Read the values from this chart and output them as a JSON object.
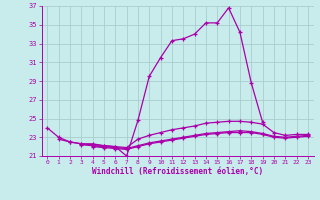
{
  "title": "",
  "xlabel": "Windchill (Refroidissement éolien,°C)",
  "ylabel": "",
  "background_color": "#c8ecec",
  "line_color": "#aa00aa",
  "grid_color": "#aacccc",
  "xlim": [
    -0.5,
    23.5
  ],
  "ylim": [
    21,
    37
  ],
  "yticks": [
    21,
    23,
    25,
    27,
    29,
    31,
    33,
    35,
    37
  ],
  "xticks": [
    0,
    1,
    2,
    3,
    4,
    5,
    6,
    7,
    8,
    9,
    10,
    11,
    12,
    13,
    14,
    15,
    16,
    17,
    18,
    19,
    20,
    21,
    22,
    23
  ],
  "series": [
    [
      24.0,
      23.0,
      22.5,
      22.3,
      22.3,
      22.1,
      22.0,
      21.0,
      24.8,
      29.5,
      31.5,
      33.3,
      33.5,
      34.0,
      35.2,
      35.2,
      36.8,
      34.2,
      28.8,
      24.6,
      null,
      null,
      null,
      null
    ],
    [
      null,
      22.8,
      22.5,
      22.3,
      22.2,
      22.1,
      22.0,
      21.9,
      22.8,
      23.2,
      23.5,
      23.8,
      24.0,
      24.2,
      24.5,
      24.6,
      24.7,
      24.7,
      24.6,
      24.4,
      23.5,
      23.2,
      23.3,
      23.3
    ],
    [
      null,
      null,
      null,
      22.2,
      22.1,
      22.0,
      21.9,
      21.8,
      22.1,
      22.4,
      22.6,
      22.8,
      23.0,
      23.2,
      23.4,
      23.5,
      23.6,
      23.7,
      23.6,
      23.4,
      23.1,
      23.0,
      23.1,
      23.2
    ],
    [
      null,
      null,
      null,
      null,
      22.0,
      21.9,
      21.8,
      21.7,
      22.0,
      22.3,
      22.5,
      22.7,
      22.9,
      23.1,
      23.3,
      23.4,
      23.5,
      23.5,
      23.5,
      23.3,
      23.0,
      22.9,
      23.0,
      23.1
    ]
  ]
}
